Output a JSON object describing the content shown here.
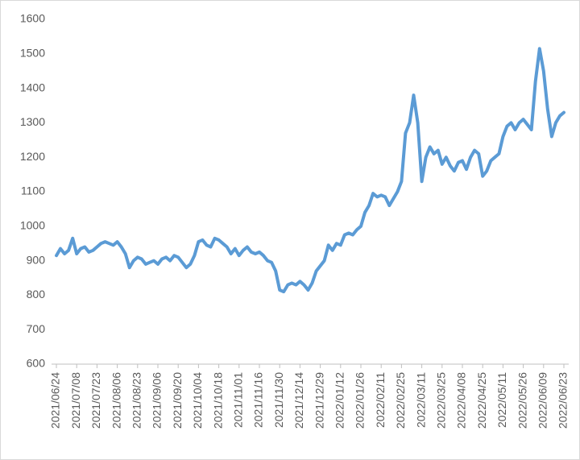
{
  "chart_data": {
    "type": "line",
    "categories": [
      "2021/06/24",
      null,
      null,
      null,
      null,
      "2021/07/08",
      null,
      null,
      null,
      null,
      "2021/07/23",
      null,
      null,
      null,
      null,
      "2021/08/06",
      null,
      null,
      null,
      null,
      "2021/08/23",
      null,
      null,
      null,
      null,
      "2021/09/06",
      null,
      null,
      null,
      null,
      "2021/09/20",
      null,
      null,
      null,
      null,
      "2021/10/04",
      null,
      null,
      null,
      null,
      "2021/10/18",
      null,
      null,
      null,
      null,
      "2021/11/01",
      null,
      null,
      null,
      null,
      "2021/11/16",
      null,
      null,
      null,
      null,
      "2021/11/30",
      null,
      null,
      null,
      null,
      "2021/12/14",
      null,
      null,
      null,
      null,
      "2021/12/29",
      null,
      null,
      null,
      null,
      "2022/01/12",
      null,
      null,
      null,
      null,
      "2022/01/26",
      null,
      null,
      null,
      null,
      "2022/02/11",
      null,
      null,
      null,
      null,
      "2022/02/25",
      null,
      null,
      null,
      null,
      "2022/03/11",
      null,
      null,
      null,
      null,
      "2022/03/25",
      null,
      null,
      null,
      null,
      "2022/04/08",
      null,
      null,
      null,
      null,
      "2022/04/25",
      null,
      null,
      null,
      null,
      "2022/05/11",
      null,
      null,
      null,
      null,
      "2022/05/26",
      null,
      null,
      null,
      null,
      "2022/06/09",
      null,
      null,
      null,
      null,
      "2022/06/23"
    ],
    "series": [
      {
        "name": null,
        "color": "#5b9bd5",
        "values": [
          915,
          935,
          920,
          930,
          965,
          920,
          935,
          940,
          925,
          930,
          940,
          950,
          955,
          950,
          945,
          955,
          940,
          920,
          880,
          900,
          910,
          905,
          890,
          895,
          900,
          890,
          905,
          910,
          900,
          915,
          910,
          895,
          880,
          890,
          915,
          955,
          960,
          945,
          940,
          965,
          960,
          950,
          940,
          920,
          935,
          915,
          930,
          940,
          925,
          920,
          925,
          915,
          900,
          895,
          870,
          815,
          810,
          830,
          835,
          830,
          840,
          830,
          815,
          835,
          870,
          885,
          900,
          945,
          930,
          950,
          945,
          975,
          980,
          975,
          990,
          1000,
          1040,
          1060,
          1095,
          1085,
          1090,
          1085,
          1060,
          1080,
          1100,
          1130,
          1270,
          1300,
          1380,
          1300,
          1130,
          1200,
          1230,
          1210,
          1220,
          1180,
          1200,
          1175,
          1160,
          1185,
          1190,
          1165,
          1200,
          1220,
          1210,
          1145,
          1160,
          1190,
          1200,
          1210,
          1260,
          1290,
          1300,
          1280,
          1300,
          1310,
          1295,
          1280,
          1420,
          1515,
          1450,
          1340,
          1260,
          1300,
          1320,
          1330
        ]
      }
    ],
    "ylim": [
      600,
      1600
    ],
    "yticks": [
      600,
      700,
      800,
      900,
      1000,
      1100,
      1200,
      1300,
      1400,
      1500,
      1600
    ],
    "grid": false
  }
}
